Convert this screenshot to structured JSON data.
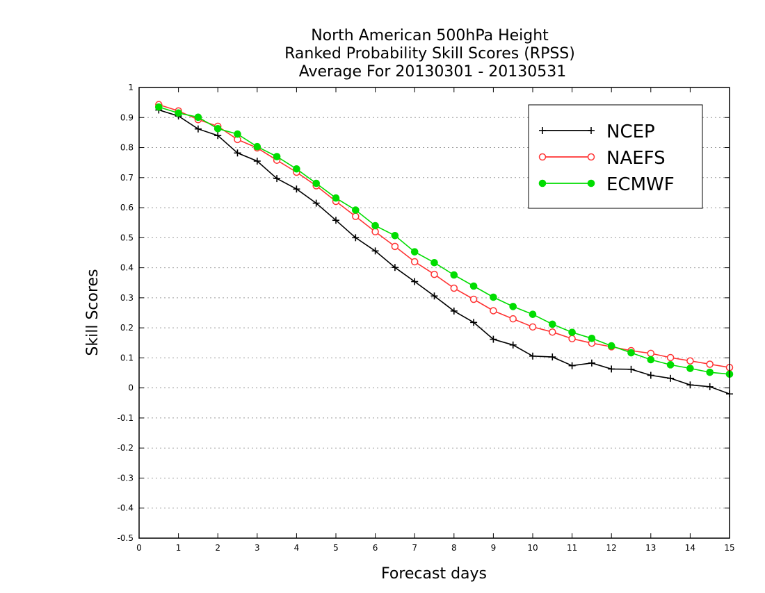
{
  "chart_data": {
    "type": "line",
    "title_lines": [
      "North American 500hPa Height",
      "Ranked Probability Skill Scores (RPSS)",
      "Average For 20130301 - 20130531"
    ],
    "xlabel": "Forecast days",
    "ylabel": "Skill Scores",
    "xlim": [
      0,
      15
    ],
    "ylim": [
      -0.5,
      1
    ],
    "x_ticks": [
      0,
      1,
      2,
      3,
      4,
      5,
      6,
      7,
      8,
      9,
      10,
      11,
      12,
      13,
      14,
      15
    ],
    "y_ticks": [
      -0.5,
      -0.4,
      -0.3,
      -0.2,
      -0.1,
      0,
      0.1,
      0.2,
      0.3,
      0.4,
      0.5,
      0.6,
      0.7,
      0.8,
      0.9,
      1
    ],
    "y_tick_labels": [
      "-0.5",
      "-0.4",
      "-0.3",
      "-0.2",
      "-0.1",
      "0",
      "0.1",
      "0.2",
      "0.3",
      "0.4",
      "0.5",
      "0.6",
      "0.7",
      "0.8",
      "0.9",
      "1"
    ],
    "grid": "horizontal dotted",
    "legend_position": "top-right",
    "x": [
      0.5,
      1,
      1.5,
      2,
      2.5,
      3,
      3.5,
      4,
      4.5,
      5,
      5.5,
      6,
      6.5,
      7,
      7.5,
      8,
      8.5,
      9,
      9.5,
      10,
      10.5,
      11,
      11.5,
      12,
      12.5,
      13,
      13.5,
      14,
      14.5,
      15
    ],
    "series": [
      {
        "name": "NCEP",
        "color": "#000000",
        "marker": "plus",
        "values": [
          0.925,
          0.905,
          0.862,
          0.84,
          0.782,
          0.755,
          0.697,
          0.662,
          0.615,
          0.558,
          0.5,
          0.456,
          0.401,
          0.354,
          0.306,
          0.256,
          0.218,
          0.162,
          0.143,
          0.106,
          0.103,
          0.074,
          0.083,
          0.063,
          0.062,
          0.042,
          0.032,
          0.01,
          0.004,
          -0.02
        ]
      },
      {
        "name": "NAEFS",
        "color": "#ff3333",
        "marker": "open-circle",
        "values": [
          0.943,
          0.922,
          0.893,
          0.871,
          0.827,
          0.799,
          0.758,
          0.718,
          0.673,
          0.621,
          0.571,
          0.52,
          0.471,
          0.42,
          0.378,
          0.332,
          0.295,
          0.257,
          0.23,
          0.203,
          0.186,
          0.164,
          0.149,
          0.137,
          0.124,
          0.115,
          0.101,
          0.09,
          0.079,
          0.068
        ]
      },
      {
        "name": "ECMWF",
        "color": "#00dd00",
        "marker": "filled-circle",
        "values": [
          0.935,
          0.915,
          0.901,
          0.863,
          0.845,
          0.803,
          0.77,
          0.729,
          0.681,
          0.632,
          0.592,
          0.54,
          0.507,
          0.453,
          0.417,
          0.376,
          0.339,
          0.302,
          0.271,
          0.245,
          0.212,
          0.185,
          0.165,
          0.14,
          0.117,
          0.094,
          0.077,
          0.065,
          0.052,
          0.046
        ]
      }
    ]
  }
}
